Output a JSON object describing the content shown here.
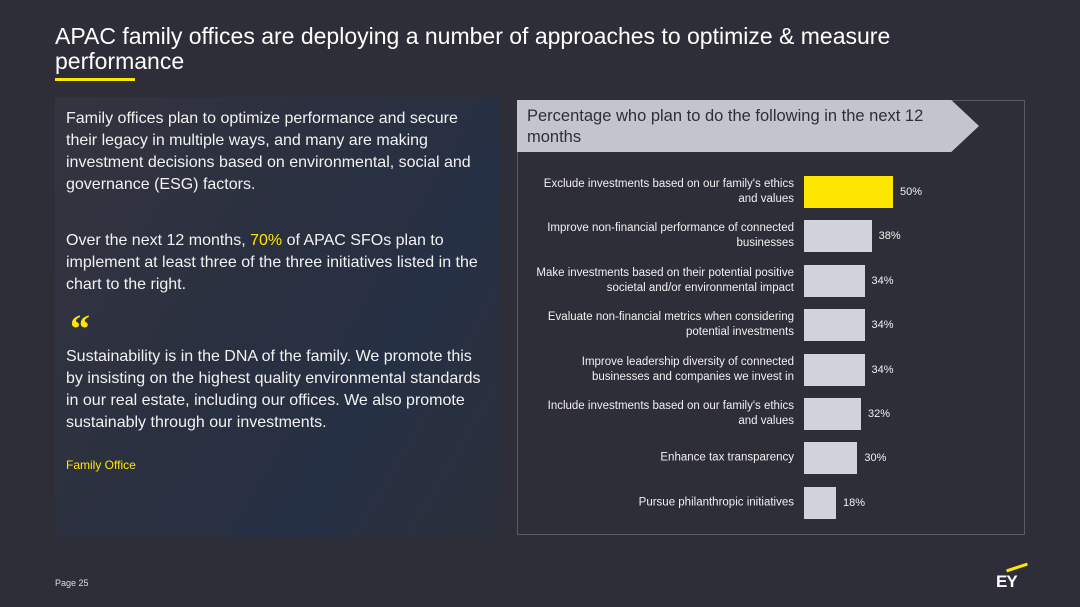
{
  "title": "APAC family offices are deploying a number of approaches to optimize & measure performance",
  "intro": "Family offices plan to optimize performance and secure their legacy in multiple ways, and many are making investment decisions based on environmental, social and governance (ESG) factors.",
  "highlight_text": [
    "Over the next 12 months, ",
    "70%",
    " of APAC SFOs plan to implement at least three of the three initiatives listed in the chart to the right."
  ],
  "quote_mark": "“",
  "quote": "Sustainability is in the DNA of the family. We promote this by insisting on the highest quality environmental standards in our real estate, including our offices. We also promote sustainably through our investments.",
  "quote_source": "Family Office",
  "page": "Page 25",
  "logo": "EY",
  "chart_data": {
    "type": "hbar",
    "title": "Percentage who plan to do the following in the next 12 months",
    "categories": [
      "Exclude investments based on our family's ethics and values",
      "Improve non-financial performance of connected businesses",
      "Make investments based on their potential positive societal and/or environmental impact",
      "Evaluate non-financial metrics when considering potential investments",
      "Improve leadership diversity of connected businesses and companies we invest in",
      "Include investments based on our family's ethics and values",
      "Enhance tax transparency",
      "Pursue philanthropic initiatives"
    ],
    "values": [
      50,
      38,
      34,
      34,
      34,
      32,
      30,
      18
    ],
    "value_labels": [
      "50%",
      "38%",
      "34%",
      "34%",
      "34%",
      "32%",
      "30%",
      "18%"
    ],
    "colors": [
      "#ffe600",
      "#d2d2da",
      "#d2d2da",
      "#d2d2da",
      "#d2d2da",
      "#d2d2da",
      "#d2d2da",
      "#d2d2da"
    ]
  }
}
